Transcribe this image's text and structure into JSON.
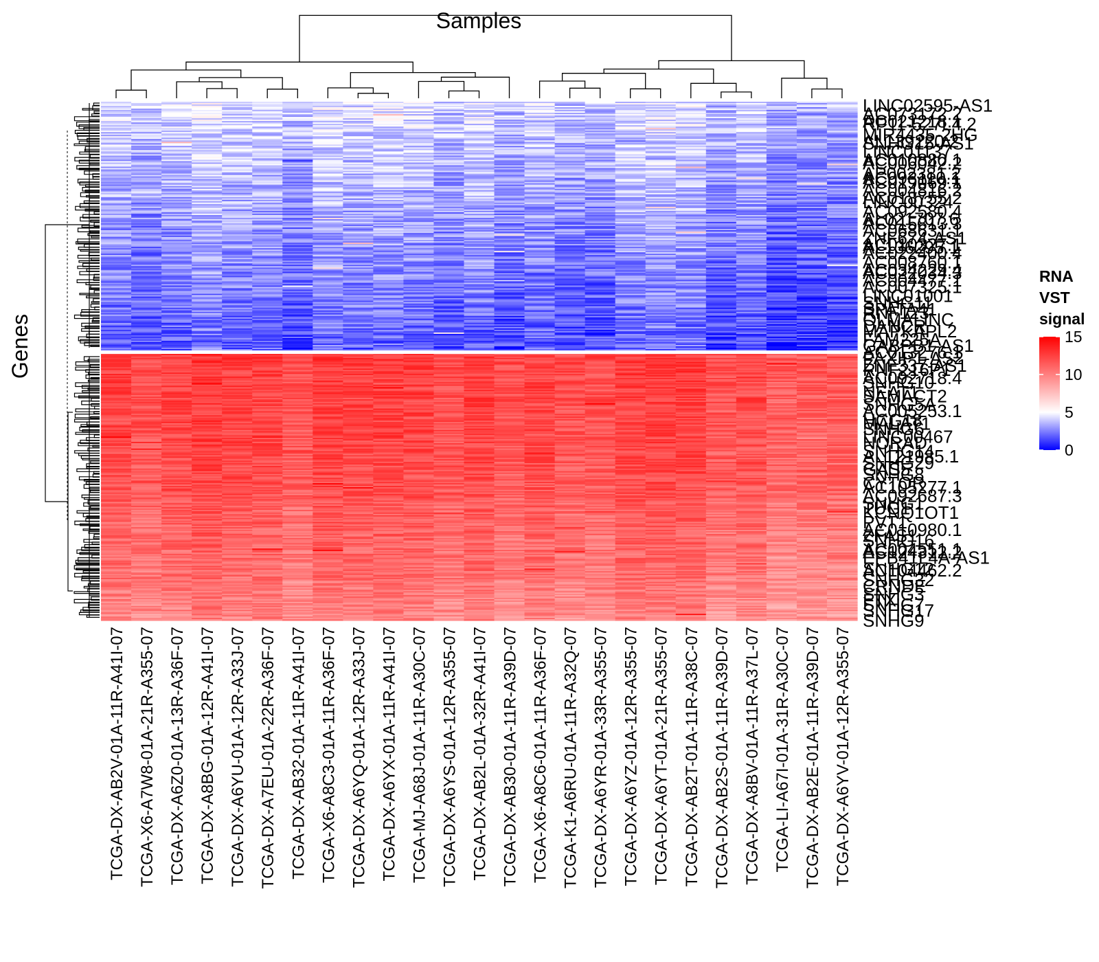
{
  "chart_data": {
    "type": "heatmap",
    "title": "Samples",
    "ylabel": "Genes",
    "legend": {
      "title_lines": [
        "RNA",
        "VST",
        "signal"
      ],
      "ticks": [
        15,
        10,
        5,
        0
      ],
      "range": [
        0,
        15
      ],
      "colors": [
        "#0000ff",
        "#ffffff",
        "#ff0000"
      ],
      "placement": "right"
    },
    "columns": [
      "TCGA-DX-AB2V-01A-11R-A41I-07",
      "TCGA-X6-A7W8-01A-21R-A355-07",
      "TCGA-DX-A6Z0-01A-13R-A36F-07",
      "TCGA-DX-A8BG-01A-12R-A41I-07",
      "TCGA-DX-A6YU-01A-12R-A33J-07",
      "TCGA-DX-A7EU-01A-22R-A36F-07",
      "TCGA-DX-AB32-01A-11R-A41I-07",
      "TCGA-X6-A8C3-01A-11R-A36F-07",
      "TCGA-DX-A6YQ-01A-12R-A33J-07",
      "TCGA-DX-A6YX-01A-11R-A41I-07",
      "TCGA-MJ-A68J-01A-11R-A30C-07",
      "TCGA-DX-A6YS-01A-12R-A355-07",
      "TCGA-DX-AB2L-01A-32R-A41I-07",
      "TCGA-DX-AB30-01A-11R-A39D-07",
      "TCGA-X6-A8C6-01A-11R-A36F-07",
      "TCGA-K1-A6RU-01A-11R-A32Q-07",
      "TCGA-DX-A6YR-01A-33R-A355-07",
      "TCGA-DX-A6YZ-01A-12R-A355-07",
      "TCGA-DX-A6YT-01A-21R-A355-07",
      "TCGA-DX-AB2T-01A-11R-A38C-07",
      "TCGA-DX-AB2S-01A-11R-A39D-07",
      "TCGA-DX-A8BV-01A-11R-A37L-07",
      "TCGA-LI-A67I-01A-31R-A30C-07",
      "TCGA-DX-AB2E-01A-11R-A39D-07",
      "TCGA-DX-A6YV-01A-12R-A355-07"
    ],
    "row_labels_visible": [
      "LINC02595-AS1",
      "AC073172.2",
      "AC021218.1",
      "RP11-527L4.2",
      "MIR4435-2HG",
      "AL139220.2",
      "SNHG15-AS1",
      "LINC01137",
      "AC010880.1",
      "AC006042.2",
      "AP002381.2",
      "AC093110.1",
      "AC019069.1",
      "AC004816.2",
      "AC018755.2",
      "LINC00324",
      "AC092580.4",
      "AL021707.6",
      "AC015813.3",
      "AC068631.1",
      "ZNF674-AS1",
      "AC010327.1",
      "AL136295.1",
      "AC022400.4",
      "AC008760.1",
      "AC034229.4",
      "AC022034.3",
      "AC004477.1",
      "AC007325.1",
      "LINC01001",
      "SNHG11",
      "SPATA41",
      "RNF123",
      "OLMALINC",
      "DANCR",
      "MAPKAPL2",
      "FAM225A",
      "GABPB1-AS1",
      "AC013276.1",
      "PAXIP1-AS2",
      "ZNF337-AS1",
      "RNF216P1",
      "AC092718.4",
      "SNHG10",
      "NEAT1",
      "SAMACT2",
      "SNHG5A",
      "AC005253.1",
      "HCG18",
      "MALAT1",
      "SNHG6",
      "LINC00467",
      "NORAD",
      "SNHG14",
      "AL121985.1",
      "SNHG29",
      "GAS5",
      "SNHG8",
      "CYTOR",
      "AC105277.1",
      "AC092687.3",
      "SNHG1",
      "TUG1",
      "KCNQ1OT1",
      "PVT1",
      "AC010980.1",
      "ZFAS1",
      "SNHG16",
      "AC004551.1",
      "AC124312.2",
      "EPB41L4A-AS1",
      "SNHG12",
      "AC104462.2",
      "SNHG32",
      "CRNDE",
      "SNHG3",
      "FTX",
      "SNHG7",
      "SNHG17",
      "SNHG9"
    ]
  }
}
